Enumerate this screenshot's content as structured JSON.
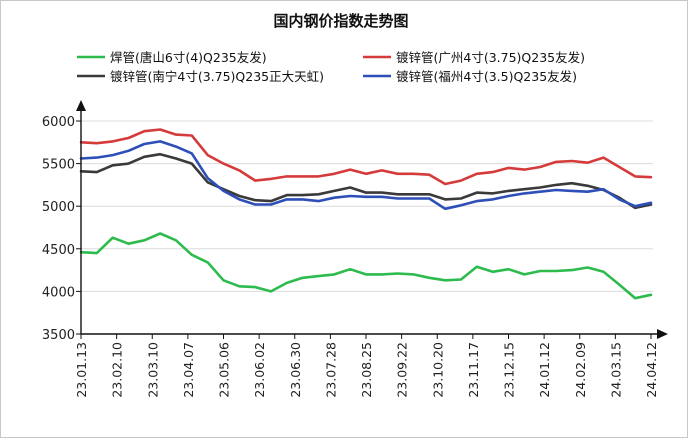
{
  "chart_data": {
    "type": "line",
    "title": "国内钢价指数走势图",
    "ylim": [
      3500,
      6000
    ],
    "yticks": [
      3500,
      4000,
      4500,
      5000,
      5500,
      6000
    ],
    "xticks": [
      "23.01.13",
      "23.02.10",
      "23.03.10",
      "23.04.07",
      "23.05.06",
      "23.06.02",
      "23.06.30",
      "23.07.28",
      "23.08.25",
      "23.09.22",
      "23.10.20",
      "23.11.17",
      "23.12.15",
      "24.01.12",
      "24.02.09",
      "24.03.15",
      "24.04.12"
    ],
    "grid": "horizontal",
    "legend": "top",
    "series": [
      {
        "name": "焊管(唐山6寸(4)Q235友发)",
        "color": "#2dbb4e",
        "values": [
          4460,
          4450,
          4630,
          4560,
          4600,
          4680,
          4600,
          4430,
          4340,
          4130,
          4060,
          4050,
          4000,
          4100,
          4160,
          4180,
          4200,
          4260,
          4200,
          4200,
          4210,
          4200,
          4160,
          4130,
          4140,
          4290,
          4230,
          4260,
          4200,
          4240,
          4240,
          4250,
          4280,
          4230,
          4080,
          3920,
          3960
        ]
      },
      {
        "name": "镀锌管(广州4寸(3.75)Q235友发)",
        "color": "#d63b3b",
        "values": [
          5750,
          5740,
          5760,
          5800,
          5880,
          5900,
          5840,
          5830,
          5600,
          5500,
          5420,
          5300,
          5320,
          5350,
          5350,
          5350,
          5380,
          5430,
          5380,
          5420,
          5380,
          5380,
          5370,
          5260,
          5300,
          5380,
          5400,
          5450,
          5430,
          5460,
          5520,
          5530,
          5510,
          5570,
          5460,
          5350,
          5340
        ]
      },
      {
        "name": "镀锌管(南宁4寸(3.75)Q235正大天虹)",
        "color": "#3a3a3a",
        "values": [
          5410,
          5400,
          5480,
          5500,
          5580,
          5610,
          5560,
          5500,
          5280,
          5200,
          5120,
          5070,
          5060,
          5130,
          5130,
          5140,
          5180,
          5220,
          5160,
          5160,
          5140,
          5140,
          5140,
          5080,
          5090,
          5160,
          5150,
          5180,
          5200,
          5220,
          5250,
          5270,
          5240,
          5190,
          5100,
          4980,
          5020
        ]
      },
      {
        "name": "镀锌管(福州4寸(3.5)Q235友发)",
        "color": "#2e4fb8",
        "values": [
          5560,
          5570,
          5600,
          5650,
          5730,
          5760,
          5700,
          5620,
          5330,
          5180,
          5080,
          5020,
          5020,
          5080,
          5080,
          5060,
          5100,
          5120,
          5110,
          5110,
          5090,
          5090,
          5090,
          4970,
          5010,
          5060,
          5080,
          5120,
          5150,
          5170,
          5190,
          5180,
          5170,
          5200,
          5080,
          5000,
          5040
        ]
      }
    ]
  }
}
